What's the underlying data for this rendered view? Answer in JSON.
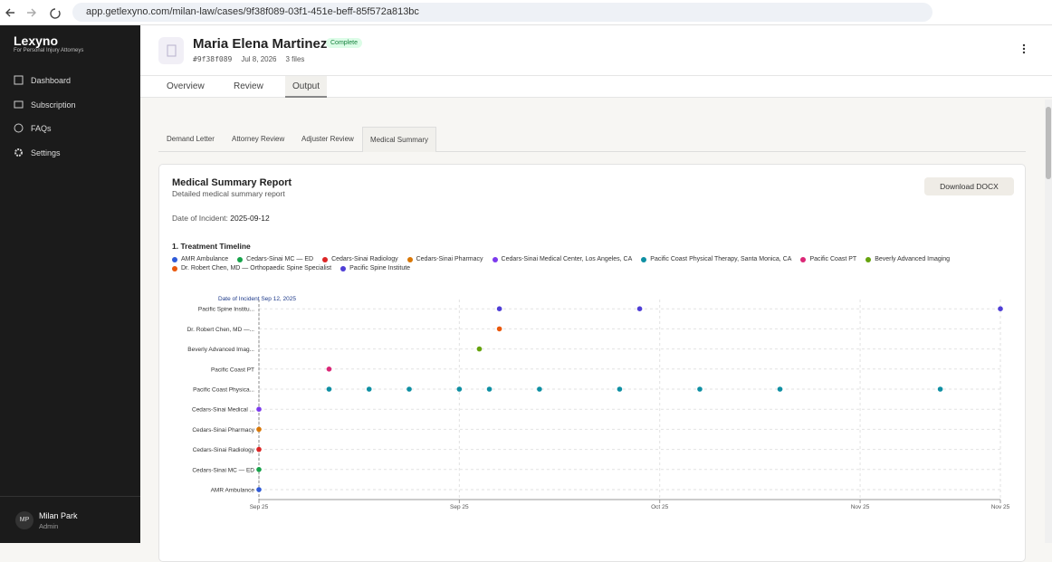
{
  "browser": {
    "url": "app.getlexyno.com/milan-law/cases/9f38f089-03f1-451e-beff-85f572a813bc"
  },
  "sidebar": {
    "brand": "Lexyno",
    "tagline": "For Personal Injury Attorneys",
    "nav": [
      "Dashboard",
      "Subscription",
      "FAQs",
      "Settings"
    ],
    "user": {
      "initials": "MP",
      "name": "Milan Park",
      "role": "Admin"
    }
  },
  "header": {
    "name": "Maria Elena Martinez",
    "status": "Complete",
    "id": "#9f38f089",
    "date": "Jul 8, 2026",
    "files": "3 files"
  },
  "tabs": [
    "Overview",
    "Review",
    "Output"
  ],
  "subtabs": [
    "Demand Letter",
    "Attorney Review",
    "Adjuster Review",
    "Medical Summary"
  ],
  "report": {
    "title": "Medical Summary Report",
    "subtitle": "Detailed medical summary report",
    "incident_label": "Date of Incident:",
    "incident_date": "2025-09-12",
    "download": "Download DOCX",
    "section": "1. Treatment Timeline"
  },
  "timeline": {
    "type": "scatter",
    "marker_label": "Date of Incident Sep 12, 2025",
    "xlim": [
      0,
      74
    ],
    "xticks": [
      {
        "value": 0,
        "label": "Sep 25"
      },
      {
        "value": 20,
        "label": "Sep 25"
      },
      {
        "value": 40,
        "label": "Oct 25"
      },
      {
        "value": 60,
        "label": "Nov 25"
      },
      {
        "value": 74,
        "label": "Nov 25"
      }
    ],
    "grid": true,
    "series": [
      {
        "name": "AMR Ambulance",
        "label": "AMR Ambulance",
        "color": "#2f5bd8",
        "x": [
          0
        ]
      },
      {
        "name": "Cedars-Sinai MC — ED",
        "label": "Cedars-Sinai MC — ED",
        "color": "#16a34a",
        "x": [
          0
        ]
      },
      {
        "name": "Cedars-Sinai Radiology",
        "label": "Cedars-Sinai Radiology",
        "color": "#dc2626",
        "x": [
          0
        ]
      },
      {
        "name": "Cedars-Sinai Pharmacy",
        "label": "Cedars-Sinai Pharmacy",
        "color": "#d97706",
        "x": [
          0
        ]
      },
      {
        "name": "Cedars-Sinai Medical Center, Los Angeles, CA",
        "label": "Cedars-Sinai Medical ...",
        "color": "#7c3aed",
        "x": [
          0
        ]
      },
      {
        "name": "Pacific Coast Physical Therapy, Santa Monica, CA",
        "label": "Pacific Coast Physica...",
        "color": "#0e8fa3",
        "x": [
          7,
          11,
          15,
          20,
          23,
          28,
          36,
          44,
          52,
          68
        ]
      },
      {
        "name": "Pacific Coast PT",
        "label": "Pacific Coast PT",
        "color": "#db2777",
        "x": [
          7
        ]
      },
      {
        "name": "Beverly Advanced Imaging",
        "label": "Beverly Advanced Imag...",
        "color": "#65a30d",
        "x": [
          22
        ]
      },
      {
        "name": "Dr. Robert Chen, MD — Orthopaedic Spine Specialist",
        "label": "Dr. Robert Chen, MD —...",
        "color": "#ea580c",
        "x": [
          24
        ]
      },
      {
        "name": "Pacific Spine Institute",
        "label": "Pacific Spine Institu...",
        "color": "#4f3ed6",
        "x": [
          24,
          38,
          74
        ]
      }
    ]
  }
}
